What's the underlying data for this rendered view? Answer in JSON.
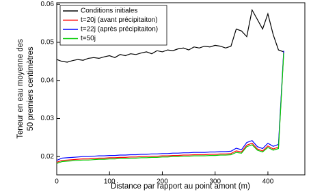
{
  "chart_data": {
    "type": "line",
    "xlabel": "Distance par rapport au point amont (m)",
    "ylabel": [
      "Teneur en eau moyenne des",
      "50 premiers centimètres"
    ],
    "x": [
      0,
      10,
      20,
      30,
      40,
      50,
      60,
      70,
      80,
      90,
      100,
      110,
      120,
      130,
      140,
      150,
      160,
      170,
      180,
      190,
      200,
      210,
      220,
      230,
      240,
      250,
      260,
      270,
      280,
      290,
      300,
      310,
      320,
      330,
      340,
      350,
      360,
      370,
      380,
      390,
      400,
      410,
      420,
      430
    ],
    "series": [
      {
        "name": "Conditions initiales",
        "color": "#000000",
        "values": [
          0.0455,
          0.045,
          0.0448,
          0.0452,
          0.0455,
          0.0453,
          0.0458,
          0.046,
          0.0458,
          0.0462,
          0.0465,
          0.046,
          0.0468,
          0.0465,
          0.047,
          0.0468,
          0.0472,
          0.0475,
          0.047,
          0.0478,
          0.0475,
          0.048,
          0.0478,
          0.0483,
          0.0485,
          0.048,
          0.0488,
          0.0485,
          0.049,
          0.0488,
          0.0492,
          0.049,
          0.0485,
          0.049,
          0.0535,
          0.053,
          0.0515,
          0.0585,
          0.056,
          0.0535,
          0.0575,
          0.052,
          0.048,
          0.0475
        ]
      },
      {
        "name": "t=20j (avant précipitaiton)",
        "color": "#ff0000",
        "values": [
          0.0185,
          0.019,
          0.0191,
          0.0192,
          0.0193,
          0.0194,
          0.0194,
          0.0195,
          0.0196,
          0.0196,
          0.0197,
          0.0197,
          0.0198,
          0.0198,
          0.0199,
          0.0199,
          0.02,
          0.02,
          0.0201,
          0.0201,
          0.0202,
          0.0202,
          0.0203,
          0.0203,
          0.0204,
          0.0204,
          0.0205,
          0.0205,
          0.0205,
          0.0206,
          0.0206,
          0.0207,
          0.0207,
          0.0208,
          0.0215,
          0.0212,
          0.023,
          0.0235,
          0.022,
          0.0215,
          0.0228,
          0.022,
          0.0225,
          0.0475
        ]
      },
      {
        "name": "t=22j (après précipitaiton)",
        "color": "#0000ff",
        "values": [
          0.019,
          0.0196,
          0.0197,
          0.0198,
          0.0199,
          0.02,
          0.02,
          0.0201,
          0.0202,
          0.0202,
          0.0203,
          0.0203,
          0.0204,
          0.0204,
          0.0205,
          0.0205,
          0.0206,
          0.0206,
          0.0207,
          0.0207,
          0.0208,
          0.0208,
          0.0209,
          0.0209,
          0.021,
          0.021,
          0.0211,
          0.0211,
          0.0211,
          0.0212,
          0.0212,
          0.0213,
          0.0213,
          0.0214,
          0.0222,
          0.0218,
          0.0237,
          0.0242,
          0.0226,
          0.0221,
          0.0235,
          0.0227,
          0.0232,
          0.0478
        ]
      },
      {
        "name": "t=50j",
        "color": "#00cc00",
        "values": [
          0.0182,
          0.0187,
          0.0188,
          0.0189,
          0.019,
          0.0191,
          0.0191,
          0.0192,
          0.0193,
          0.0193,
          0.0194,
          0.0194,
          0.0195,
          0.0195,
          0.0196,
          0.0196,
          0.0197,
          0.0197,
          0.0198,
          0.0198,
          0.0199,
          0.0199,
          0.02,
          0.02,
          0.0201,
          0.0201,
          0.0202,
          0.0202,
          0.0202,
          0.0203,
          0.0203,
          0.0204,
          0.0204,
          0.0205,
          0.0211,
          0.0209,
          0.0226,
          0.0231,
          0.0217,
          0.0212,
          0.0224,
          0.0217,
          0.0221,
          0.0472
        ]
      }
    ],
    "xlim": [
      0,
      470
    ],
    "xticks": [
      0,
      100,
      200,
      300,
      400
    ],
    "ylim": [
      0.0152,
      0.0604
    ],
    "yticks": [
      0.02,
      0.03,
      0.04,
      0.05,
      0.06
    ],
    "legend": "upper left"
  }
}
